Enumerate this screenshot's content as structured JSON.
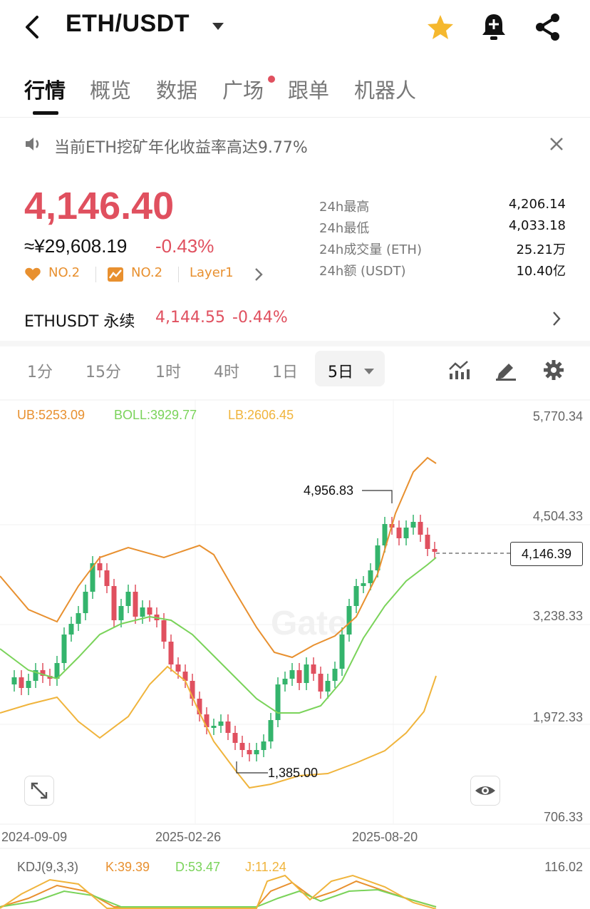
{
  "header": {
    "pair": "ETH/USDT"
  },
  "tabs": [
    {
      "label": "行情",
      "active": true
    },
    {
      "label": "概览"
    },
    {
      "label": "数据"
    },
    {
      "label": "广场",
      "dot": true
    },
    {
      "label": "跟单"
    },
    {
      "label": "机器人"
    }
  ],
  "notice": {
    "text": "当前ETH挖矿年化收益率高达9.77%"
  },
  "price": {
    "last": "4,146.40",
    "cny": "≈¥29,608.19",
    "change": "-0.43%",
    "tags": [
      "NO.2",
      "NO.2",
      "Layer1"
    ]
  },
  "stats": [
    {
      "label": "24h最高",
      "value": "4,206.14"
    },
    {
      "label": "24h最低",
      "value": "4,033.18"
    },
    {
      "label": "24h成交量 (ETH)",
      "value": "25.21万"
    },
    {
      "label": "24h额 (USDT)",
      "value": "10.40亿"
    }
  ],
  "perpetual": {
    "name": "ETHUSDT 永续",
    "price": "4,144.55",
    "change": "-0.44%"
  },
  "intervals": [
    "1分",
    "15分",
    "1时",
    "4时",
    "1日",
    "5日"
  ],
  "indicators": {
    "ub": "UB:5253.09",
    "boll": "BOLL:3929.77",
    "lb": "LB:2606.45"
  },
  "chart": {
    "y_labels": [
      "5,770.34",
      "4,504.33",
      "3,238.33",
      "1,972.33",
      "706.33"
    ],
    "x_labels": [
      "2024-09-09",
      "2025-02-26",
      "2025-08-20"
    ],
    "high_marker": "4,956.83",
    "low_marker": "1,385.00",
    "current_price": "4,146.39",
    "watermark": "Gate"
  },
  "kdj": {
    "title": "KDJ(9,3,3)",
    "k": "K:39.39",
    "d": "D:53.47",
    "j": "J:11.24",
    "max": "116.02"
  },
  "colors": {
    "red": "#e0505f",
    "green": "#34b46c",
    "ub": "#e8902f",
    "boll": "#7ad35a",
    "lb": "#f0b43c"
  }
}
